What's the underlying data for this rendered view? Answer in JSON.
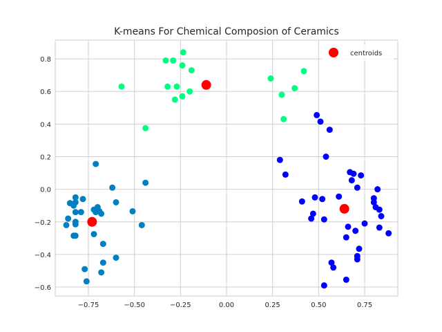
{
  "chart_data": {
    "type": "scatter",
    "title": "K-means For Chemical Composion of Ceramics",
    "xlabel": "",
    "ylabel": "",
    "xlim": [
      -0.93,
      0.93
    ],
    "ylim": [
      -0.655,
      0.915
    ],
    "xticks": [
      -0.75,
      -0.5,
      -0.25,
      0.0,
      0.25,
      0.5,
      0.75
    ],
    "xtick_labels": [
      "−0.75",
      "−0.50",
      "−0.25",
      "0.00",
      "0.25",
      "0.50",
      "0.75"
    ],
    "yticks": [
      -0.6,
      -0.4,
      -0.2,
      0.0,
      0.2,
      0.4,
      0.6,
      0.8
    ],
    "ytick_labels": [
      "−0.6",
      "−0.4",
      "−0.2",
      "0.0",
      "0.2",
      "0.4",
      "0.6",
      "0.8"
    ],
    "grid": true,
    "legend": {
      "position": "top-right",
      "entries": [
        "centroids"
      ]
    },
    "clusters": [
      {
        "color": "#00ff80",
        "points": [
          [
            -0.33,
            0.79
          ],
          [
            -0.29,
            0.79
          ],
          [
            -0.235,
            0.84
          ],
          [
            -0.24,
            0.76
          ],
          [
            -0.19,
            0.73
          ],
          [
            -0.57,
            0.63
          ],
          [
            -0.32,
            0.63
          ],
          [
            -0.27,
            0.63
          ],
          [
            -0.24,
            0.57
          ],
          [
            -0.2,
            0.6
          ],
          [
            -0.28,
            0.55
          ],
          [
            -0.44,
            0.375
          ],
          [
            0.24,
            0.68
          ],
          [
            0.42,
            0.725
          ],
          [
            0.37,
            0.62
          ],
          [
            0.3,
            0.58
          ],
          [
            0.31,
            0.43
          ]
        ]
      },
      {
        "color": "#0000ff",
        "points": [
          [
            0.49,
            0.455
          ],
          [
            0.51,
            0.415
          ],
          [
            0.56,
            0.365
          ],
          [
            0.29,
            0.18
          ],
          [
            0.32,
            0.09
          ],
          [
            0.54,
            0.2
          ],
          [
            0.67,
            0.105
          ],
          [
            0.69,
            0.095
          ],
          [
            0.73,
            0.085
          ],
          [
            0.68,
            0.055
          ],
          [
            0.71,
            0.01
          ],
          [
            0.82,
            0.0
          ],
          [
            0.8,
            -0.055
          ],
          [
            0.8,
            -0.08
          ],
          [
            0.81,
            -0.11
          ],
          [
            0.83,
            -0.125
          ],
          [
            0.84,
            -0.165
          ],
          [
            0.48,
            -0.05
          ],
          [
            0.52,
            -0.06
          ],
          [
            0.61,
            -0.045
          ],
          [
            0.41,
            -0.075
          ],
          [
            0.47,
            -0.15
          ],
          [
            0.46,
            -0.18
          ],
          [
            0.53,
            -0.185
          ],
          [
            0.75,
            -0.21
          ],
          [
            0.83,
            -0.235
          ],
          [
            0.66,
            -0.23
          ],
          [
            0.7,
            -0.255
          ],
          [
            0.88,
            -0.27
          ],
          [
            0.65,
            -0.295
          ],
          [
            0.72,
            -0.365
          ],
          [
            0.71,
            -0.41
          ],
          [
            0.71,
            -0.43
          ],
          [
            0.57,
            -0.45
          ],
          [
            0.58,
            -0.48
          ],
          [
            0.65,
            -0.555
          ],
          [
            0.53,
            -0.59
          ]
        ]
      },
      {
        "color": "#0080c0",
        "points": [
          [
            -0.71,
            0.155
          ],
          [
            -0.44,
            0.04
          ],
          [
            -0.62,
            0.01
          ],
          [
            -0.6,
            -0.08
          ],
          [
            -0.51,
            -0.135
          ],
          [
            -0.46,
            -0.22
          ],
          [
            -0.82,
            -0.05
          ],
          [
            -0.78,
            -0.06
          ],
          [
            -0.85,
            -0.085
          ],
          [
            -0.82,
            -0.08
          ],
          [
            -0.83,
            -0.1
          ],
          [
            -0.7,
            -0.11
          ],
          [
            -0.72,
            -0.125
          ],
          [
            -0.69,
            -0.135
          ],
          [
            -0.82,
            -0.14
          ],
          [
            -0.79,
            -0.14
          ],
          [
            -0.71,
            -0.14
          ],
          [
            -0.68,
            -0.15
          ],
          [
            -0.86,
            -0.18
          ],
          [
            -0.82,
            -0.2
          ],
          [
            -0.82,
            -0.215
          ],
          [
            -0.87,
            -0.22
          ],
          [
            -0.83,
            -0.285
          ],
          [
            -0.82,
            -0.285
          ],
          [
            -0.72,
            -0.275
          ],
          [
            -0.67,
            -0.335
          ],
          [
            -0.6,
            -0.42
          ],
          [
            -0.67,
            -0.45
          ],
          [
            -0.77,
            -0.49
          ],
          [
            -0.68,
            -0.51
          ],
          [
            -0.76,
            -0.565
          ]
        ]
      }
    ],
    "centroids": {
      "name": "centroids",
      "color": "#ff0000",
      "points": [
        [
          -0.11,
          0.64
        ],
        [
          0.64,
          -0.12
        ],
        [
          -0.73,
          -0.2
        ]
      ]
    }
  }
}
